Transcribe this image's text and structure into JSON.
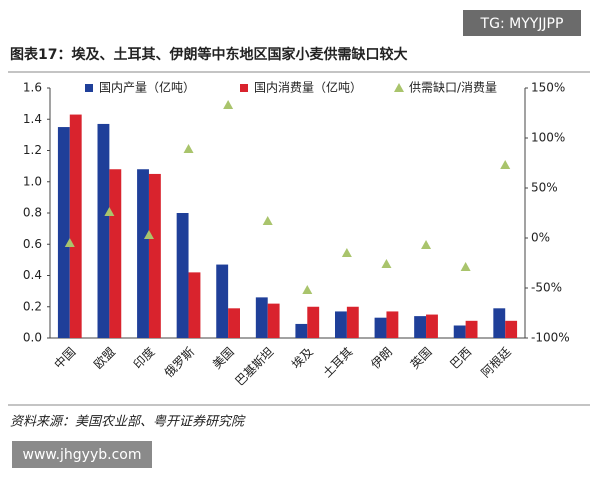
{
  "watermark": "TG: MYYJJPP",
  "footer_url": "www.jhgyyb.com",
  "source": "资料来源：美国农业部、粤开证券研究院",
  "chart_data": {
    "type": "bar",
    "title": "图表17：埃及、土耳其、伊朗等中东地区国家小麦供需缺口较大",
    "categories": [
      "中国",
      "欧盟",
      "印度",
      "俄罗斯",
      "美国",
      "巴基斯坦",
      "埃及",
      "土耳其",
      "伊朗",
      "英国",
      "巴西",
      "阿根廷"
    ],
    "series": [
      {
        "name": "国内产量（亿吨）",
        "color": "#1f3f99",
        "values": [
          1.35,
          1.37,
          1.08,
          0.8,
          0.47,
          0.26,
          0.09,
          0.17,
          0.13,
          0.14,
          0.08,
          0.19
        ]
      },
      {
        "name": "国内消费量（亿吨）",
        "color": "#d9232d",
        "values": [
          1.43,
          1.08,
          1.05,
          0.42,
          0.19,
          0.22,
          0.2,
          0.2,
          0.17,
          0.15,
          0.11,
          0.11
        ]
      },
      {
        "name": "供需缺口/消费量",
        "color": "#a9c46c",
        "axis": "y2",
        "values": [
          -5,
          26,
          3,
          89,
          133,
          17,
          -52,
          -15,
          -26,
          -7,
          -29,
          73
        ]
      }
    ],
    "ylim": [
      0,
      1.6
    ],
    "yticks": [
      {
        "value": 0,
        "label": "0.0"
      },
      0.2,
      0.4,
      0.6,
      0.8,
      {
        "value": 1,
        "label": "1.0"
      },
      1.2,
      1.4,
      1.6
    ],
    "y2lim": [
      -100,
      150
    ],
    "y2ticks": [
      {
        "value": -100,
        "label": "-100%"
      },
      {
        "value": -50,
        "label": "-50%"
      },
      {
        "value": 0,
        "label": "0%"
      },
      {
        "value": 50,
        "label": "50%"
      },
      {
        "value": 100,
        "label": "100%"
      },
      {
        "value": 150,
        "label": "150%"
      }
    ],
    "legend": "top"
  }
}
